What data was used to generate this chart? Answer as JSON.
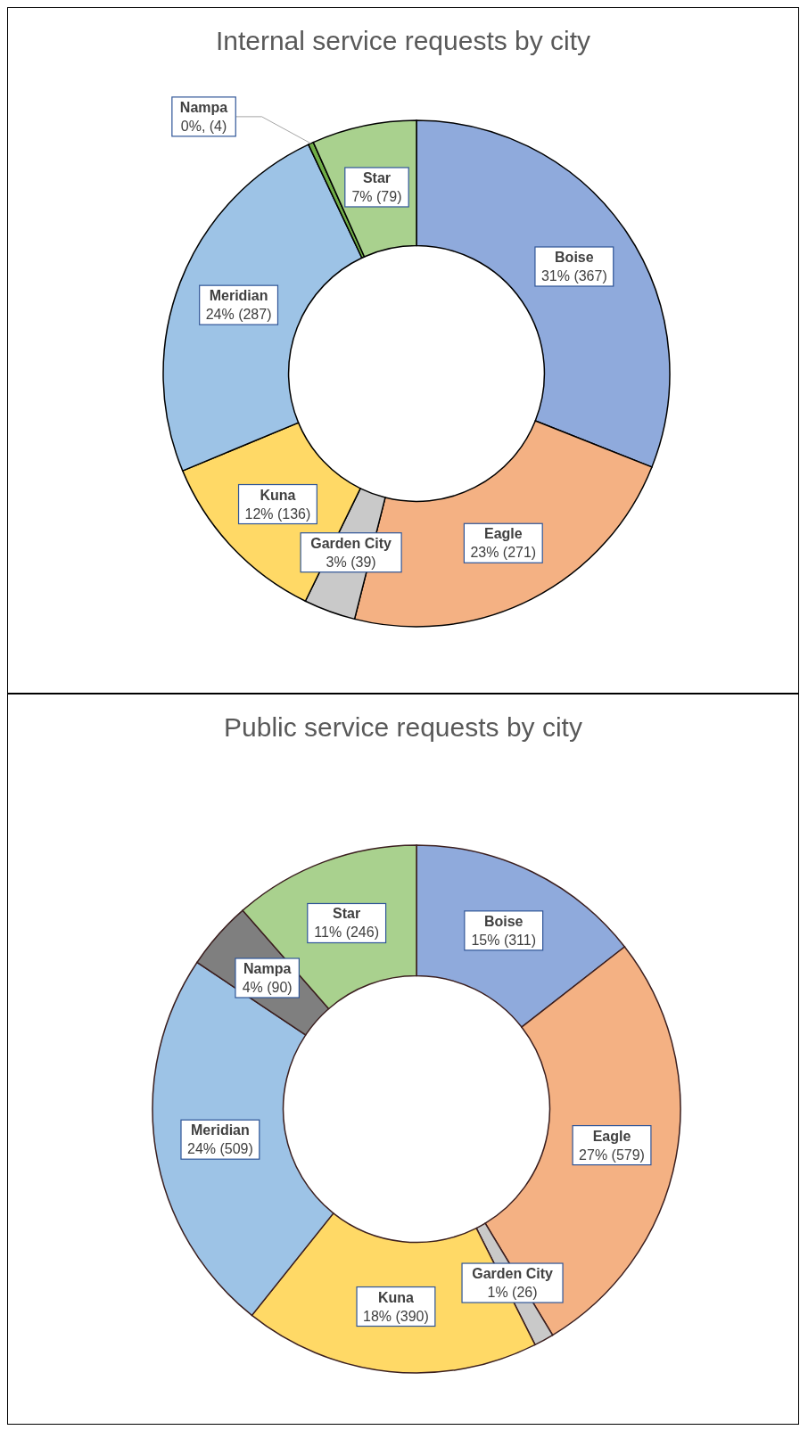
{
  "chart_data": [
    {
      "type": "donut",
      "title": "Internal service requests by city",
      "categories": [
        "Boise",
        "Eagle",
        "Garden City",
        "Kuna",
        "Meridian",
        "Nampa",
        "Star"
      ],
      "values": [
        367,
        271,
        39,
        136,
        287,
        4,
        79
      ],
      "colors": [
        "#8faadc",
        "#f4b183",
        "#c9c9c9",
        "#ffd966",
        "#9dc3e6",
        "#70ad47",
        "#a9d18e"
      ],
      "value_labels": [
        "31% (367)",
        "23% (271)",
        "3% (39)",
        "12% (136)",
        "24% (287)",
        "0%, (4)",
        "7% (79)"
      ],
      "legend": false
    },
    {
      "type": "donut",
      "title": "Public service requests by city",
      "categories": [
        "Boise",
        "Eagle",
        "Garden City",
        "Kuna",
        "Meridian",
        "Nampa",
        "Star"
      ],
      "values": [
        311,
        579,
        26,
        390,
        509,
        90,
        246
      ],
      "colors": [
        "#8faadc",
        "#f4b183",
        "#c9c9c9",
        "#ffd966",
        "#9dc3e6",
        "#7f7f7f",
        "#a9d18e"
      ],
      "value_labels": [
        "15% (311)",
        "27% (579)",
        "1% (26)",
        "18% (390)",
        "24% (509)",
        "4% (90)",
        "11% (246)"
      ],
      "legend": false
    }
  ]
}
